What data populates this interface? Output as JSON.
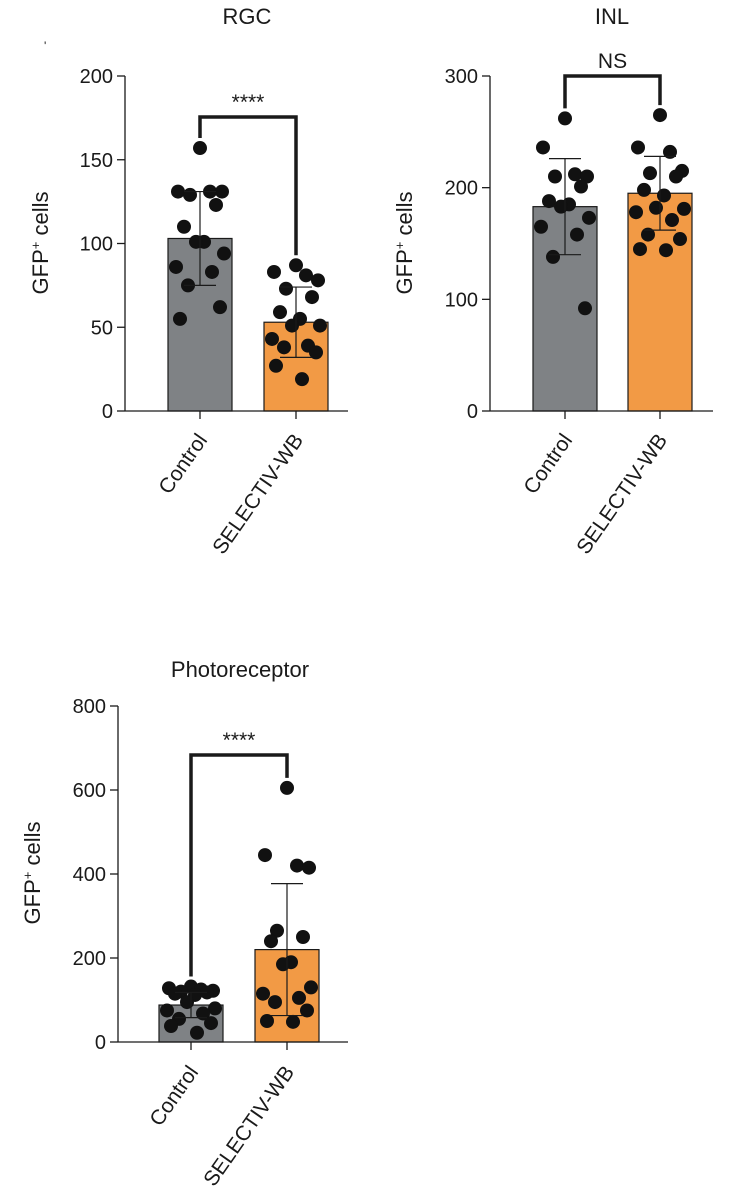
{
  "chart_data": [
    {
      "type": "bar",
      "title": "RGC",
      "ylabel": "GFP⁺ cells",
      "ylim": [
        0,
        200
      ],
      "yticks": [
        0,
        50,
        100,
        150,
        200
      ],
      "categories": [
        "Control",
        "SELECTIV-WB"
      ],
      "values": [
        103,
        53
      ],
      "error": [
        28,
        21
      ],
      "colors": [
        "#7f8285",
        "#f29a45"
      ],
      "significance": "****",
      "points": [
        [
          157,
          131,
          131,
          131,
          129,
          123,
          110,
          101,
          101,
          94,
          86,
          83,
          75,
          62,
          55
        ],
        [
          87,
          83,
          81,
          78,
          73,
          68,
          59,
          55,
          51,
          51,
          43,
          39,
          38,
          35,
          27,
          19
        ]
      ]
    },
    {
      "type": "bar",
      "title": "INL",
      "ylabel": "GFP⁺ cells",
      "ylim": [
        0,
        300
      ],
      "yticks": [
        0,
        100,
        200,
        300
      ],
      "categories": [
        "Control",
        "SELECTIV-WB"
      ],
      "values": [
        183,
        195
      ],
      "error": [
        43,
        33
      ],
      "colors": [
        "#7f8285",
        "#f29a45"
      ],
      "significance": "NS",
      "points": [
        [
          262,
          236,
          212,
          210,
          210,
          201,
          188,
          185,
          183,
          173,
          165,
          158,
          138,
          92
        ],
        [
          265,
          236,
          232,
          215,
          213,
          210,
          198,
          193,
          182,
          181,
          178,
          171,
          158,
          154,
          145,
          144
        ]
      ]
    },
    {
      "type": "bar",
      "title": "Photoreceptor",
      "ylabel": "GFP⁺ cells",
      "ylim": [
        0,
        800
      ],
      "yticks": [
        0,
        200,
        400,
        600,
        800
      ],
      "categories": [
        "Control",
        "SELECTIV-WB"
      ],
      "values": [
        88,
        220
      ],
      "error": [
        30,
        157
      ],
      "colors": [
        "#7f8285",
        "#f29a45"
      ],
      "significance": "****",
      "points": [
        [
          132,
          128,
          125,
          122,
          120,
          118,
          115,
          112,
          95,
          80,
          75,
          68,
          55,
          45,
          38,
          22
        ],
        [
          605,
          445,
          420,
          415,
          265,
          250,
          240,
          190,
          185,
          130,
          115,
          105,
          95,
          75,
          50,
          48
        ]
      ]
    }
  ],
  "stray_mark": "'"
}
